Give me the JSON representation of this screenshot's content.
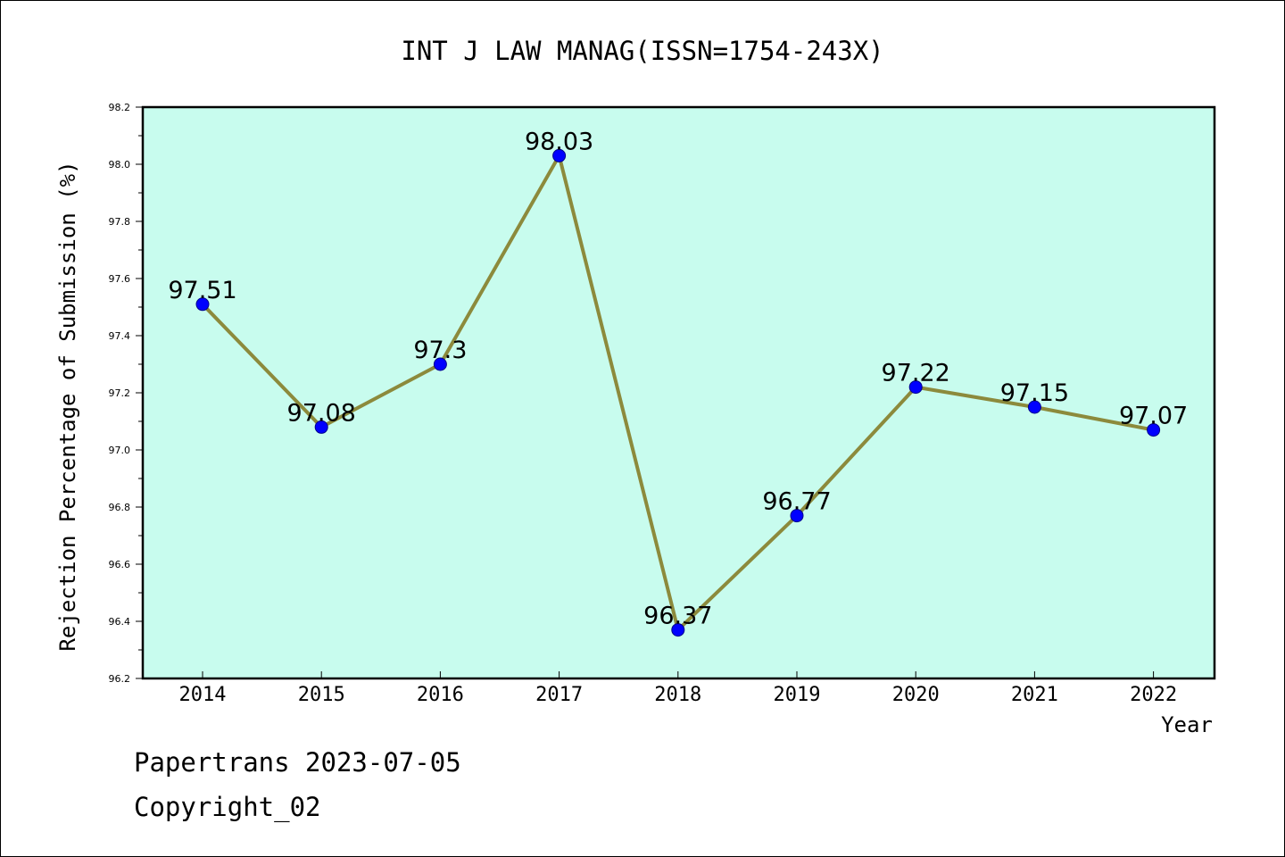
{
  "chart_data": {
    "type": "line",
    "title": "INT J LAW MANAG(ISSN=1754-243X)",
    "xlabel": "Year",
    "ylabel": "Rejection Percentage of Submission (%)",
    "categories": [
      "2014",
      "2015",
      "2016",
      "2017",
      "2018",
      "2019",
      "2020",
      "2021",
      "2022"
    ],
    "values": [
      97.51,
      97.08,
      97.3,
      98.03,
      96.37,
      96.77,
      97.22,
      97.15,
      97.07
    ],
    "data_labels": [
      "97.51",
      "97.08",
      "97.3",
      "98.03",
      "96.37",
      "96.77",
      "97.22",
      "97.15",
      "97.07"
    ],
    "ylim": [
      96.2,
      98.2
    ],
    "yticks": [
      "96.2",
      "96.4",
      "96.6",
      "96.8",
      "97.0",
      "97.2",
      "97.4",
      "97.6",
      "97.8",
      "98.0",
      "98.2"
    ],
    "grid": false,
    "colors": {
      "plot_background": "#c8fcee",
      "line": "#8c8a3c",
      "marker": "#0000ff"
    }
  },
  "footer": {
    "line1": "Papertrans 2023-07-05",
    "line2": "Copyright_02"
  }
}
